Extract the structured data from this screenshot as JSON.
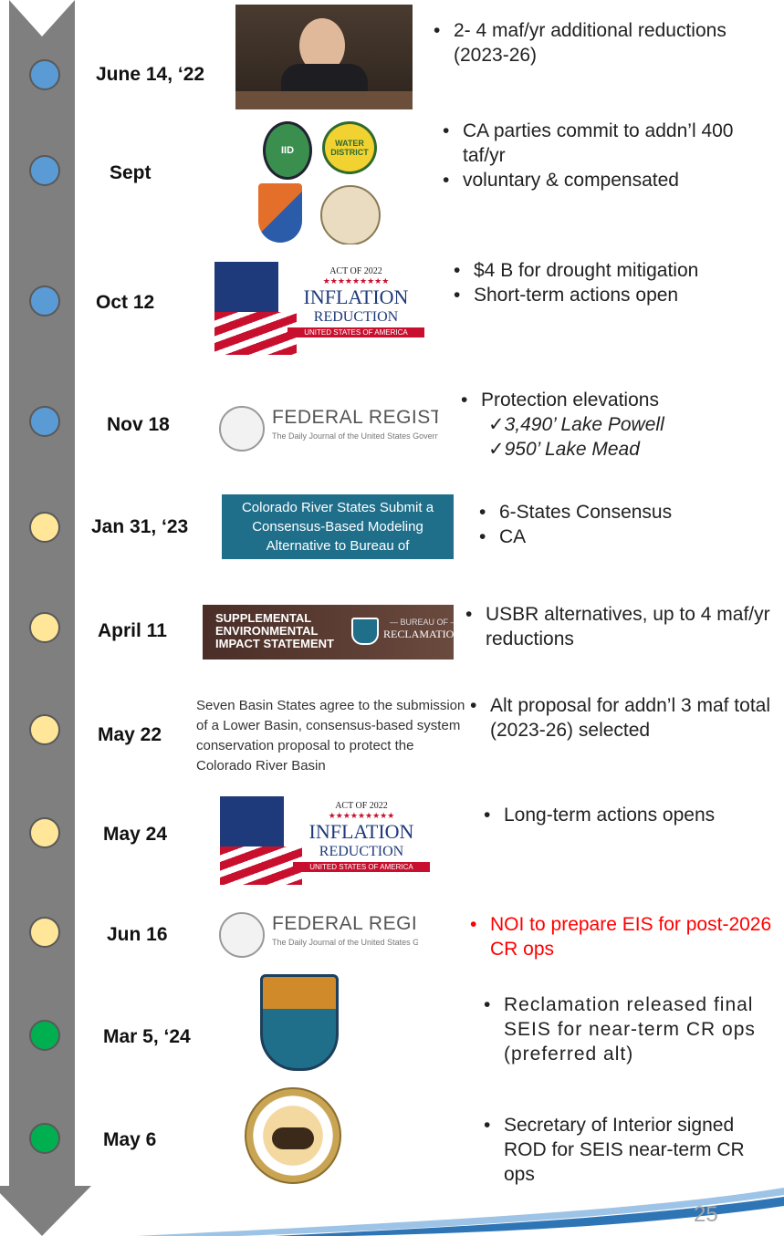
{
  "events": [
    {
      "date": "June 14, ‘22",
      "dot_color": "#5b9bd5",
      "bullets": [
        "2- 4 maf/yr additional reductions (2023-26)"
      ]
    },
    {
      "date": "Sept",
      "dot_color": "#5b9bd5",
      "bullets": [
        "CA parties commit to addn’l 400 taf/yr",
        "voluntary & compensated"
      ],
      "image_text": [
        "IID",
        "WATER DISTRICT"
      ]
    },
    {
      "date": "Oct 12",
      "dot_color": "#5b9bd5",
      "bullets": [
        "$4 B for drought mitigation",
        "Short-term actions open"
      ],
      "image_text": [
        "ACT OF 2022",
        "★★★★★★★★★",
        "INFLATION",
        "REDUCTION",
        "UNITED STATES OF AMERICA"
      ]
    },
    {
      "date": "Nov 18",
      "dot_color": "#5b9bd5",
      "bullets": [
        "Protection elevations"
      ],
      "checks": [
        "3,490’ Lake Powell",
        "950’ Lake Mead"
      ],
      "image_text": [
        "FEDERAL REGISTER",
        "The Daily Journal of the United States Government"
      ]
    },
    {
      "date": "Jan 31, ‘23",
      "dot_color": "#ffe699",
      "bullets": [
        "6-States Consensus",
        "CA"
      ],
      "image_text": [
        "Colorado River States Submit a Consensus-Based Modeling Alternative to Bureau of Reclamation"
      ]
    },
    {
      "date": "April 11",
      "dot_color": "#ffe699",
      "bullets": [
        "USBR alternatives, up to 4 maf/yr reductions"
      ],
      "image_text": [
        "SUPPLEMENTAL",
        "ENVIRONMENTAL",
        "IMPACT STATEMENT",
        "— BUREAU OF —",
        "RECLAMATION"
      ]
    },
    {
      "date": "May 22",
      "dot_color": "#ffe699",
      "bullets": [
        "Alt proposal for addn’l 3 maf total (2023-26) selected"
      ],
      "image_text": [
        "Seven Basin States agree to the submission of a Lower Basin, consensus-based system conservation proposal to protect the Colorado River Basin"
      ]
    },
    {
      "date": "May 24",
      "dot_color": "#ffe699",
      "bullets": [
        "Long-term actions opens"
      ],
      "image_text": [
        "ACT OF 2022",
        "★★★★★★★★★",
        "INFLATION",
        "REDUCTION",
        "UNITED STATES OF AMERICA"
      ]
    },
    {
      "date": "Jun 16",
      "dot_color": "#ffe699",
      "bullets": [
        "NOI to prepare EIS for post-2026 CR ops"
      ],
      "bullet_color": "#ff0000",
      "image_text": [
        "FEDERAL REGISTER",
        "The Daily Journal of the United States Government"
      ]
    },
    {
      "date": "Mar 5, ‘24",
      "dot_color": "#00b050",
      "bullets": [
        "Reclamation released final SEIS for near-term CR ops (preferred alt)"
      ]
    },
    {
      "date": "May 6",
      "dot_color": "#00b050",
      "bullets": [
        "Secretary of Interior signed ROD for SEIS near-term CR ops"
      ]
    }
  ],
  "page_number": "25"
}
